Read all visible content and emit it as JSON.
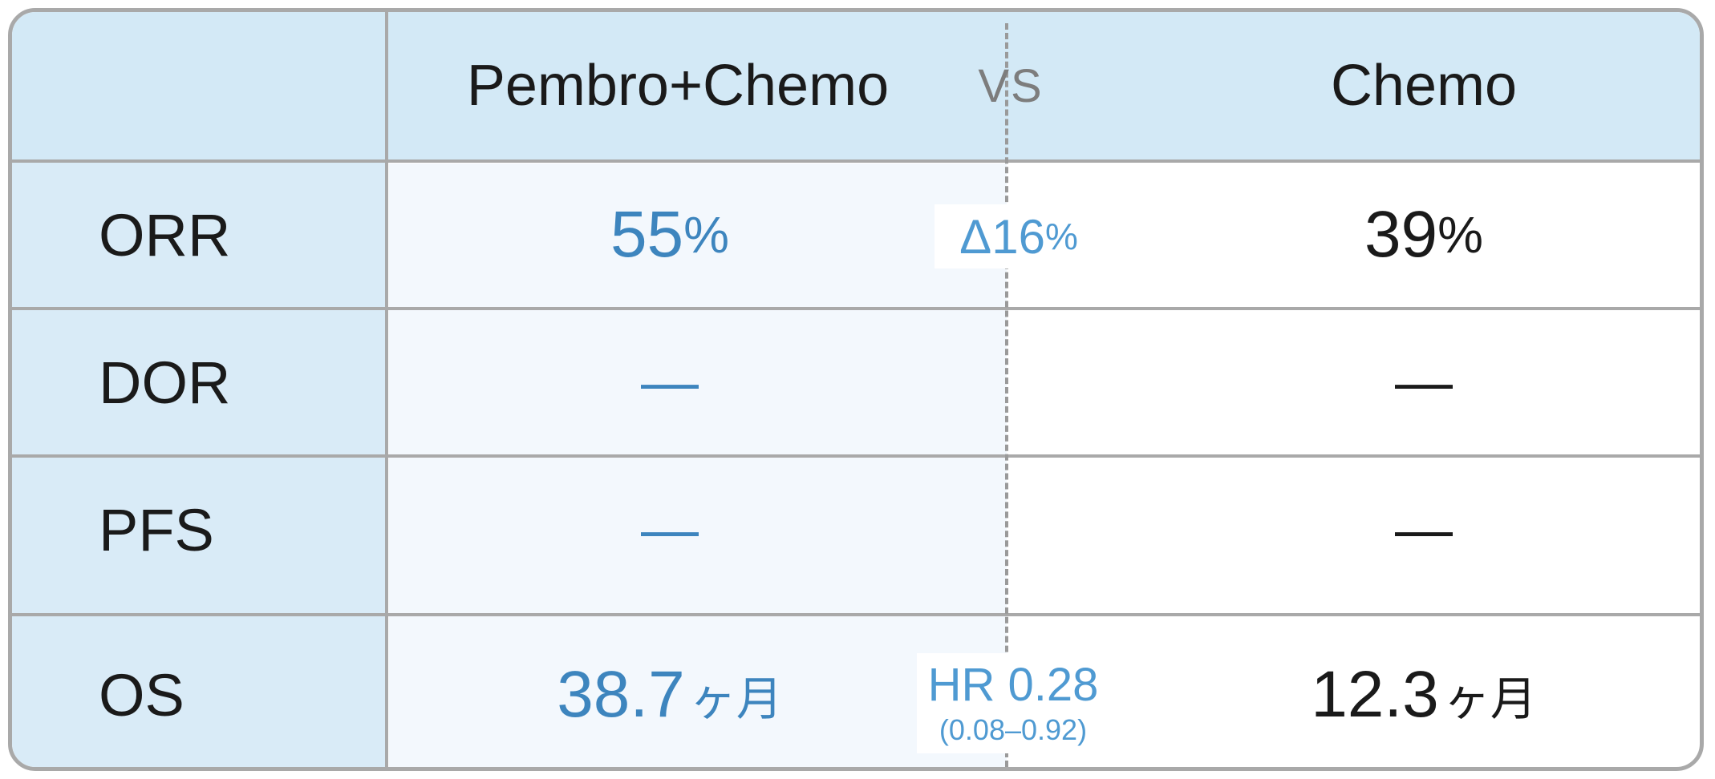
{
  "header": {
    "left_arm": "Pembro+Chemo",
    "vs": "VS",
    "right_arm": "Chemo"
  },
  "rows": [
    {
      "label": "ORR",
      "left": "55",
      "left_unit": "%",
      "right": "39",
      "right_unit": "%",
      "diff_symbol": "Δ",
      "diff_value": "16",
      "diff_unit": "%"
    },
    {
      "label": "DOR",
      "left": "—",
      "right": "—"
    },
    {
      "label": "PFS",
      "left": "—",
      "right": "—"
    },
    {
      "label": "OS",
      "left": "38.7",
      "left_unit": "ヶ月",
      "right": "12.3",
      "right_unit": "ヶ月",
      "hr": "HR 0.28",
      "hr_ci": "(0.08–0.92)"
    }
  ],
  "colors": {
    "header_bg": "#d3e9f6",
    "label_col_bg": "#d9ebf7",
    "accent_blue": "#3d85be",
    "delta_blue": "#4f9ad2",
    "border_gray": "#a9a9a9"
  }
}
